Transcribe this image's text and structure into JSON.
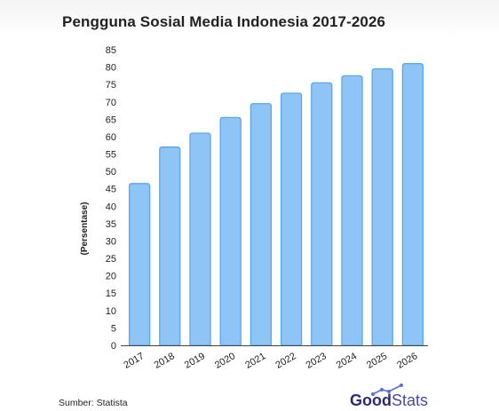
{
  "chart_data": {
    "type": "bar",
    "title": "Pengguna Sosial Media Indonesia 2017-2026",
    "xlabel": "",
    "ylabel": "(Persentase)",
    "categories": [
      "2017",
      "2018",
      "2019",
      "2020",
      "2021",
      "2022",
      "2023",
      "2024",
      "2025",
      "2026"
    ],
    "values": [
      46.5,
      57,
      61,
      65.5,
      69.5,
      72.5,
      75.5,
      77.5,
      79.5,
      81
    ],
    "ylim": [
      0,
      85
    ],
    "yticks": [
      0,
      5,
      10,
      15,
      20,
      25,
      30,
      35,
      40,
      45,
      50,
      55,
      60,
      65,
      70,
      75,
      80,
      85
    ],
    "grid": false,
    "bar_color": "#8ec4f6",
    "bar_edge_color": "#5aa6ee"
  },
  "footer": {
    "source": "Sumber: Statista",
    "logo_bold": "Good",
    "logo_light": "Stats"
  }
}
